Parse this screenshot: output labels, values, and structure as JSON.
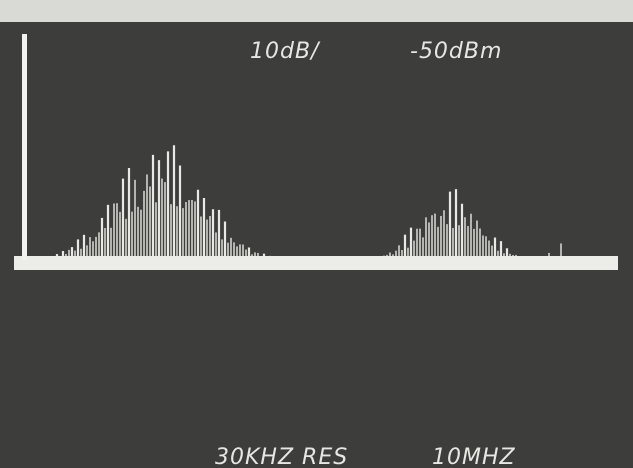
{
  "header": {
    "scale": "10dB/",
    "reference": "-50dBm"
  },
  "footer": {
    "resolution": "30KHZ RES",
    "span": "10MHZ"
  }
}
